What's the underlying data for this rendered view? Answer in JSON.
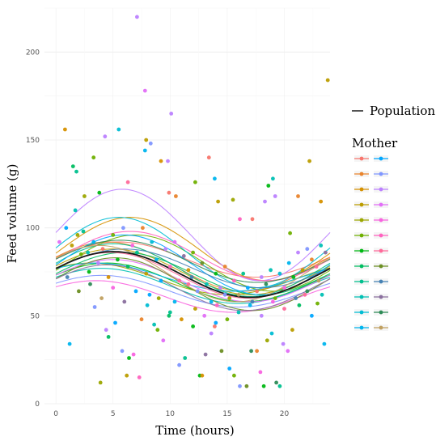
{
  "chart_data": {
    "type": "scatter",
    "title": "",
    "xlabel": "Time (hours)",
    "ylabel": "Feed volume (g)",
    "xlim": [
      -1,
      24
    ],
    "ylim": [
      0,
      225
    ],
    "x_ticks": [
      "0",
      "5",
      "10",
      "15",
      "20"
    ],
    "y_ticks": [
      "0",
      "50",
      "100",
      "150",
      "200"
    ],
    "grid": true,
    "legend": {
      "population_label": "Population",
      "mother_title": "Mother",
      "position": "right"
    },
    "population_curve": {
      "name": "Population",
      "color": "#1a1a1a",
      "baseline": 73.5,
      "amplitude": 13,
      "peak_hour": 5
    },
    "mothers": [
      {
        "color": "#F8766D",
        "baseline": 82,
        "amplitude": 10,
        "peak_hour": 5.5
      },
      {
        "color": "#E9842C",
        "baseline": 78,
        "amplitude": 14,
        "peak_hour": 4.5
      },
      {
        "color": "#D69100",
        "baseline": 88,
        "amplitude": 18,
        "peak_hour": 6.5
      },
      {
        "color": "#BC9D00",
        "baseline": 75,
        "amplitude": 13,
        "peak_hour": 5
      },
      {
        "color": "#9CA700",
        "baseline": 71,
        "amplitude": 9,
        "peak_hour": 3
      },
      {
        "color": "#6FB000",
        "baseline": 80,
        "amplitude": 16,
        "peak_hour": 7
      },
      {
        "color": "#00B813",
        "baseline": 69,
        "amplitude": 11,
        "peak_hour": 4.5
      },
      {
        "color": "#00BD61",
        "baseline": 74,
        "amplitude": 12,
        "peak_hour": 6
      },
      {
        "color": "#00C08E",
        "baseline": 76,
        "amplitude": 15,
        "peak_hour": 5
      },
      {
        "color": "#00C0B4",
        "baseline": 67,
        "amplitude": 10,
        "peak_hour": 4
      },
      {
        "color": "#00BDD4",
        "baseline": 86,
        "amplitude": 20,
        "peak_hour": 5.5
      },
      {
        "color": "#00B5EE",
        "baseline": 72,
        "amplitude": 8,
        "peak_hour": 3.5
      },
      {
        "color": "#00A7FF",
        "baseline": 79,
        "amplitude": 17,
        "peak_hour": 6
      },
      {
        "color": "#7F96FF",
        "baseline": 64,
        "amplitude": 9,
        "peak_hour": 4
      },
      {
        "color": "#BC81FF",
        "baseline": 96,
        "amplitude": 26,
        "peak_hour": 5.8
      },
      {
        "color": "#E26EF7",
        "baseline": 70,
        "amplitude": 12,
        "peak_hour": 5
      },
      {
        "color": "#F863DF",
        "baseline": 61,
        "amplitude": 9,
        "peak_hour": 3.5
      },
      {
        "color": "#FF62BF",
        "baseline": 84,
        "amplitude": 14,
        "peak_hour": 6.5
      },
      {
        "color": "#FF6A9A",
        "baseline": 73,
        "amplitude": 13,
        "peak_hour": 4.8
      },
      {
        "color": "#6B8E23",
        "baseline": 68,
        "amplitude": 15,
        "peak_hour": 5.2
      },
      {
        "color": "#4682B4",
        "baseline": 77,
        "amplitude": 11,
        "peak_hour": 6
      },
      {
        "color": "#8A6F9E",
        "baseline": 66,
        "amplitude": 13,
        "peak_hour": 4.5
      },
      {
        "color": "#2E8B57",
        "baseline": 81,
        "amplitude": 12,
        "peak_hour": 5.6
      },
      {
        "color": "#C0A060",
        "baseline": 74,
        "amplitude": 16,
        "peak_hour": 3.8
      }
    ],
    "points": [
      [
        0.8,
        156,
        2
      ],
      [
        1.5,
        135,
        7
      ],
      [
        1.8,
        132,
        8
      ],
      [
        2.5,
        118,
        4
      ],
      [
        3.3,
        140,
        5
      ],
      [
        3.8,
        120,
        6
      ],
      [
        4.3,
        152,
        14
      ],
      [
        5.5,
        156,
        10
      ],
      [
        6.3,
        126,
        18
      ],
      [
        7.1,
        220,
        14
      ],
      [
        7.8,
        178,
        15
      ],
      [
        7.9,
        150,
        3
      ],
      [
        7.8,
        144,
        11
      ],
      [
        8.3,
        148,
        13
      ],
      [
        9.2,
        138,
        2
      ],
      [
        9.8,
        138,
        14
      ],
      [
        9.9,
        120,
        0
      ],
      [
        10.1,
        165,
        14
      ],
      [
        10.5,
        118,
        1
      ],
      [
        12.2,
        126,
        5
      ],
      [
        13.4,
        140,
        0
      ],
      [
        13.9,
        128,
        11
      ],
      [
        14.2,
        115,
        3
      ],
      [
        15.5,
        116,
        4
      ],
      [
        16.1,
        105,
        17
      ],
      [
        17.2,
        105,
        0
      ],
      [
        18.3,
        115,
        14
      ],
      [
        18.6,
        124,
        6
      ],
      [
        19.0,
        128,
        9
      ],
      [
        19.2,
        118,
        14
      ],
      [
        20.5,
        97,
        5
      ],
      [
        21.2,
        118,
        1
      ],
      [
        22.2,
        138,
        3
      ],
      [
        23.2,
        115,
        2
      ],
      [
        23.8,
        184,
        3
      ],
      [
        23.5,
        34,
        11
      ],
      [
        1.2,
        34,
        11
      ],
      [
        1.7,
        110,
        9
      ],
      [
        2.2,
        85,
        5
      ],
      [
        2.9,
        75,
        6
      ],
      [
        3.4,
        55,
        13
      ],
      [
        3.9,
        12,
        4
      ],
      [
        4.4,
        42,
        14
      ],
      [
        4.6,
        38,
        7
      ],
      [
        5.2,
        46,
        12
      ],
      [
        5.8,
        30,
        13
      ],
      [
        6.2,
        16,
        3
      ],
      [
        6.4,
        26,
        6
      ],
      [
        6.8,
        28,
        16
      ],
      [
        7.3,
        15,
        17
      ],
      [
        7.5,
        48,
        1
      ],
      [
        8.2,
        62,
        12
      ],
      [
        8.6,
        45,
        9
      ],
      [
        8.9,
        42,
        5
      ],
      [
        9.4,
        36,
        15
      ],
      [
        9.9,
        50,
        7
      ],
      [
        10.4,
        58,
        11
      ],
      [
        10.8,
        22,
        13
      ],
      [
        11.3,
        26,
        8
      ],
      [
        11.6,
        68,
        18
      ],
      [
        11.9,
        72,
        20
      ],
      [
        12.2,
        54,
        3
      ],
      [
        12.6,
        16,
        6
      ],
      [
        12.8,
        16,
        2
      ],
      [
        13.1,
        28,
        21
      ],
      [
        13.6,
        40,
        14
      ],
      [
        13.9,
        44,
        0
      ],
      [
        14.1,
        56,
        17
      ],
      [
        14.5,
        30,
        19
      ],
      [
        14.8,
        62,
        13
      ],
      [
        15.2,
        20,
        12
      ],
      [
        15.6,
        16,
        5
      ],
      [
        16.1,
        10,
        13
      ],
      [
        16.7,
        10,
        19
      ],
      [
        17.1,
        30,
        22
      ],
      [
        17.6,
        30,
        1
      ],
      [
        17.9,
        18,
        16
      ],
      [
        18.2,
        10,
        6
      ],
      [
        18.5,
        36,
        4
      ],
      [
        18.9,
        40,
        10
      ],
      [
        19.3,
        12,
        22
      ],
      [
        19.6,
        10,
        8
      ],
      [
        19.9,
        34,
        14
      ],
      [
        20.3,
        30,
        15
      ],
      [
        20.7,
        42,
        3
      ],
      [
        21.3,
        56,
        7
      ],
      [
        21.8,
        62,
        18
      ],
      [
        22.4,
        50,
        12
      ],
      [
        22.9,
        57,
        5
      ],
      [
        23.3,
        62,
        9
      ],
      [
        0.3,
        92,
        15
      ],
      [
        0.9,
        100,
        12
      ],
      [
        1.4,
        90,
        3
      ],
      [
        1.9,
        96,
        4
      ],
      [
        2.4,
        98,
        8
      ],
      [
        2.8,
        86,
        9
      ],
      [
        3.3,
        92,
        11
      ],
      [
        3.7,
        80,
        14
      ],
      [
        4.1,
        88,
        0
      ],
      [
        4.6,
        72,
        2
      ],
      [
        5.0,
        96,
        5
      ],
      [
        5.4,
        82,
        6
      ],
      [
        5.9,
        100,
        13
      ],
      [
        6.3,
        78,
        7
      ],
      [
        6.7,
        90,
        16
      ],
      [
        7.1,
        86,
        8
      ],
      [
        7.6,
        100,
        1
      ],
      [
        7.9,
        74,
        3
      ],
      [
        8.4,
        92,
        10
      ],
      [
        8.8,
        82,
        11
      ],
      [
        9.2,
        70,
        12
      ],
      [
        9.6,
        88,
        14
      ],
      [
        10.0,
        78,
        17
      ],
      [
        10.4,
        92,
        15
      ],
      [
        10.8,
        70,
        18
      ],
      [
        11.2,
        84,
        21
      ],
      [
        11.6,
        76,
        2
      ],
      [
        12.0,
        86,
        5
      ],
      [
        12.4,
        64,
        13
      ],
      [
        12.8,
        80,
        19
      ],
      [
        13.2,
        68,
        9
      ],
      [
        13.6,
        58,
        11
      ],
      [
        14.0,
        74,
        6
      ],
      [
        14.4,
        66,
        14
      ],
      [
        14.8,
        78,
        1
      ],
      [
        15.2,
        60,
        4
      ],
      [
        15.6,
        70,
        17
      ],
      [
        16.0,
        62,
        23
      ],
      [
        16.4,
        74,
        8
      ],
      [
        16.8,
        66,
        12
      ],
      [
        17.2,
        58,
        20
      ],
      [
        17.6,
        64,
        0
      ],
      [
        18.0,
        72,
        14
      ],
      [
        18.4,
        68,
        22
      ],
      [
        18.8,
        76,
        9
      ],
      [
        19.2,
        60,
        5
      ],
      [
        19.6,
        74,
        10
      ],
      [
        20.0,
        66,
        16
      ],
      [
        20.4,
        80,
        11
      ],
      [
        20.8,
        72,
        6
      ],
      [
        21.2,
        86,
        14
      ],
      [
        21.6,
        76,
        3
      ],
      [
        22.0,
        88,
        13
      ],
      [
        22.4,
        82,
        1
      ],
      [
        22.8,
        78,
        18
      ],
      [
        23.2,
        90,
        9
      ],
      [
        23.6,
        86,
        21
      ],
      [
        1.0,
        72,
        20
      ],
      [
        2.0,
        64,
        19
      ],
      [
        3.0,
        68,
        22
      ],
      [
        4.0,
        60,
        23
      ],
      [
        5.0,
        66,
        16
      ],
      [
        6.0,
        58,
        21
      ],
      [
        7.0,
        64,
        12
      ],
      [
        8.0,
        56,
        10
      ],
      [
        9.0,
        60,
        4
      ],
      [
        10.0,
        52,
        8
      ],
      [
        11.0,
        48,
        2
      ],
      [
        12.0,
        44,
        6
      ],
      [
        13.0,
        50,
        15
      ],
      [
        14.0,
        46,
        12
      ],
      [
        15.0,
        48,
        5
      ],
      [
        16.0,
        52,
        9
      ],
      [
        17.0,
        56,
        11
      ],
      [
        18.0,
        50,
        14
      ],
      [
        19.0,
        58,
        16
      ],
      [
        20.0,
        54,
        18
      ],
      [
        21.0,
        60,
        20
      ],
      [
        22.0,
        64,
        22
      ],
      [
        23.0,
        70,
        23
      ]
    ]
  }
}
